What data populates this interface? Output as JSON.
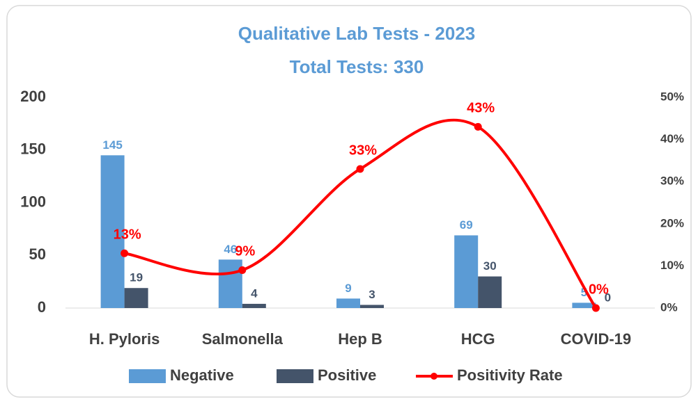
{
  "chart_data": {
    "type": "bar",
    "title": "Qualitative Lab Tests - 2023",
    "subtitle": "Total Tests: 330",
    "categories": [
      "H. Pyloris",
      "Salmonella",
      "Hep B",
      "HCG",
      "COVID-19"
    ],
    "series": [
      {
        "name": "Negative",
        "color": "#5b9bd5",
        "values": [
          145,
          46,
          9,
          69,
          5
        ]
      },
      {
        "name": "Positive",
        "color": "#44546a",
        "values": [
          19,
          4,
          3,
          30,
          0
        ]
      },
      {
        "name": "Positivity Rate",
        "color": "#ff0000",
        "type": "line",
        "axis": "y2",
        "values": [
          13,
          9,
          33,
          43,
          0
        ],
        "value_labels": [
          "13%",
          "9%",
          "33%",
          "43%",
          "0%"
        ]
      }
    ],
    "ylim": [
      0,
      200
    ],
    "yticks": [
      0,
      50,
      100,
      150,
      200
    ],
    "y2lim": [
      0,
      50
    ],
    "y2ticks": [
      {
        "value": 0,
        "label": "0%"
      },
      {
        "value": 10,
        "label": "10%"
      },
      {
        "value": 20,
        "label": "20%"
      },
      {
        "value": 30,
        "label": "30%"
      },
      {
        "value": 40,
        "label": "40%"
      },
      {
        "value": 50,
        "label": "50%"
      }
    ],
    "grid": false,
    "legend": "bottom"
  }
}
